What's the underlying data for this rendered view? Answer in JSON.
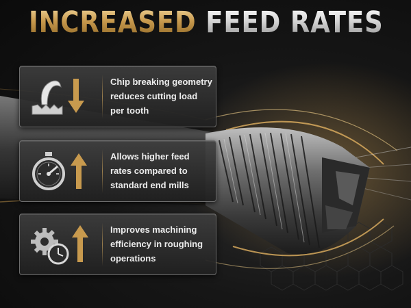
{
  "headline": {
    "part1": "INCREASED",
    "part2": "FEED RATES"
  },
  "features": [
    {
      "text": "Chip breaking geometry reduces cutting load per tooth",
      "icon": "chip-curl-down-arrow-icon"
    },
    {
      "text": "Allows higher feed rates compared to standard end mills",
      "icon": "stopwatch-up-arrow-icon"
    },
    {
      "text": "Improves machining efficiency in roughing operations",
      "icon": "gears-clock-up-arrow-icon"
    }
  ],
  "colors": {
    "gold_accent": "#c89a4e",
    "silver": "#d6d6d6",
    "background": "#161616",
    "card_border": "#6d6d6d"
  }
}
